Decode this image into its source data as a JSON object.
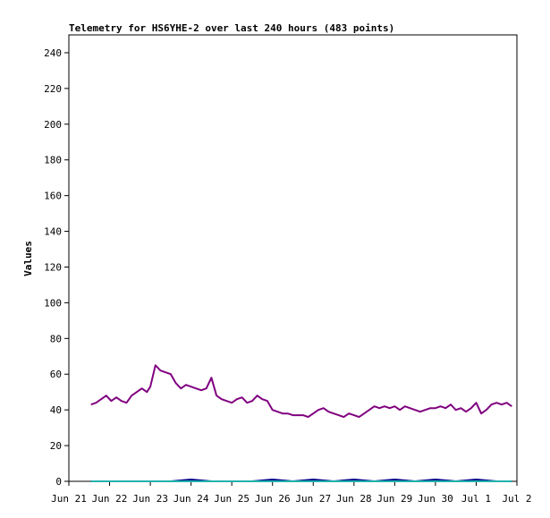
{
  "chart_data": {
    "type": "line",
    "title": "Telemetry for HS6YHE-2 over last 240 hours (483 points)",
    "xlabel": "",
    "ylabel": "Values",
    "x_ticks": [
      "Jun 21",
      "Jun 22",
      "Jun 23",
      "Jun 24",
      "Jun 25",
      "Jun 26",
      "Jun 27",
      "Jun 28",
      "Jun 29",
      "Jun 30",
      "Jul 1",
      "Jul 2"
    ],
    "y_ticks": [
      "0",
      "20",
      "40",
      "60",
      "80",
      "100",
      "120",
      "140",
      "160",
      "180",
      "200",
      "220",
      "240"
    ],
    "xlim": [
      "2024-06-21",
      "2024-07-02"
    ],
    "ylim": [
      0,
      250
    ],
    "grid": false,
    "legend": "none",
    "series": [
      {
        "color": "#800080",
        "x": [
          "2024-06-21 13:00",
          "2024-06-21 16:00",
          "2024-06-21 19:00",
          "2024-06-21 22:00",
          "2024-06-22 01:00",
          "2024-06-22 04:00",
          "2024-06-22 07:00",
          "2024-06-22 10:00",
          "2024-06-22 13:00",
          "2024-06-22 16:00",
          "2024-06-22 19:00",
          "2024-06-22 22:00",
          "2024-06-23 00:00",
          "2024-06-23 03:00",
          "2024-06-23 06:00",
          "2024-06-23 09:00",
          "2024-06-23 12:00",
          "2024-06-23 15:00",
          "2024-06-23 18:00",
          "2024-06-23 21:00",
          "2024-06-24 00:00",
          "2024-06-24 03:00",
          "2024-06-24 06:00",
          "2024-06-24 09:00",
          "2024-06-24 12:00",
          "2024-06-24 15:00",
          "2024-06-24 18:00",
          "2024-06-24 21:00",
          "2024-06-25 00:00",
          "2024-06-25 03:00",
          "2024-06-25 06:00",
          "2024-06-25 09:00",
          "2024-06-25 12:00",
          "2024-06-25 15:00",
          "2024-06-25 18:00",
          "2024-06-25 21:00",
          "2024-06-26 00:00",
          "2024-06-26 03:00",
          "2024-06-26 06:00",
          "2024-06-26 09:00",
          "2024-06-26 12:00",
          "2024-06-26 15:00",
          "2024-06-26 18:00",
          "2024-06-26 21:00",
          "2024-06-27 00:00",
          "2024-06-27 03:00",
          "2024-06-27 06:00",
          "2024-06-27 09:00",
          "2024-06-27 12:00",
          "2024-06-27 15:00",
          "2024-06-27 18:00",
          "2024-06-27 21:00",
          "2024-06-28 00:00",
          "2024-06-28 03:00",
          "2024-06-28 06:00",
          "2024-06-28 09:00",
          "2024-06-28 12:00",
          "2024-06-28 15:00",
          "2024-06-28 18:00",
          "2024-06-28 21:00",
          "2024-06-29 00:00",
          "2024-06-29 03:00",
          "2024-06-29 06:00",
          "2024-06-29 09:00",
          "2024-06-29 12:00",
          "2024-06-29 15:00",
          "2024-06-29 18:00",
          "2024-06-29 21:00",
          "2024-06-30 00:00",
          "2024-06-30 03:00",
          "2024-06-30 06:00",
          "2024-06-30 09:00",
          "2024-06-30 12:00",
          "2024-06-30 15:00",
          "2024-06-30 18:00",
          "2024-06-30 21:00",
          "2024-07-01 00:00",
          "2024-07-01 03:00",
          "2024-07-01 06:00",
          "2024-07-01 09:00",
          "2024-07-01 12:00",
          "2024-07-01 15:00",
          "2024-07-01 18:00",
          "2024-07-01 21:00"
        ],
        "values": [
          43,
          44,
          46,
          48,
          45,
          47,
          45,
          44,
          48,
          50,
          52,
          50,
          53,
          65,
          62,
          61,
          60,
          55,
          52,
          54,
          53,
          52,
          51,
          52,
          58,
          48,
          46,
          45,
          44,
          46,
          47,
          44,
          45,
          48,
          46,
          45,
          40,
          39,
          38,
          38,
          37,
          37,
          37,
          36,
          38,
          40,
          41,
          39,
          38,
          37,
          36,
          38,
          37,
          36,
          38,
          40,
          42,
          41,
          42,
          41,
          42,
          40,
          42,
          41,
          40,
          39,
          40,
          41,
          41,
          42,
          41,
          43,
          40,
          41,
          39,
          41,
          44,
          38,
          40,
          43,
          44,
          43,
          44,
          42
        ]
      },
      {
        "color": "#00008b",
        "x": [
          "2024-06-21 13:00",
          "2024-06-22 12:00",
          "2024-06-23 12:00",
          "2024-06-24 00:00",
          "2024-06-24 12:00",
          "2024-06-25 12:00",
          "2024-06-26 00:00",
          "2024-06-26 12:00",
          "2024-06-27 00:00",
          "2024-06-27 12:00",
          "2024-06-28 00:00",
          "2024-06-28 12:00",
          "2024-06-29 00:00",
          "2024-06-29 12:00",
          "2024-06-30 00:00",
          "2024-06-30 12:00",
          "2024-07-01 00:00",
          "2024-07-01 12:00",
          "2024-07-01 21:00"
        ],
        "values": [
          0,
          0,
          0,
          1,
          0,
          0,
          1,
          0,
          1,
          0,
          1,
          0,
          1,
          0,
          1,
          0,
          1,
          0,
          0
        ]
      },
      {
        "color": "#20b2aa",
        "x": [
          "2024-06-21 13:00",
          "2024-07-01 21:00"
        ],
        "values": [
          0,
          0
        ]
      }
    ]
  }
}
